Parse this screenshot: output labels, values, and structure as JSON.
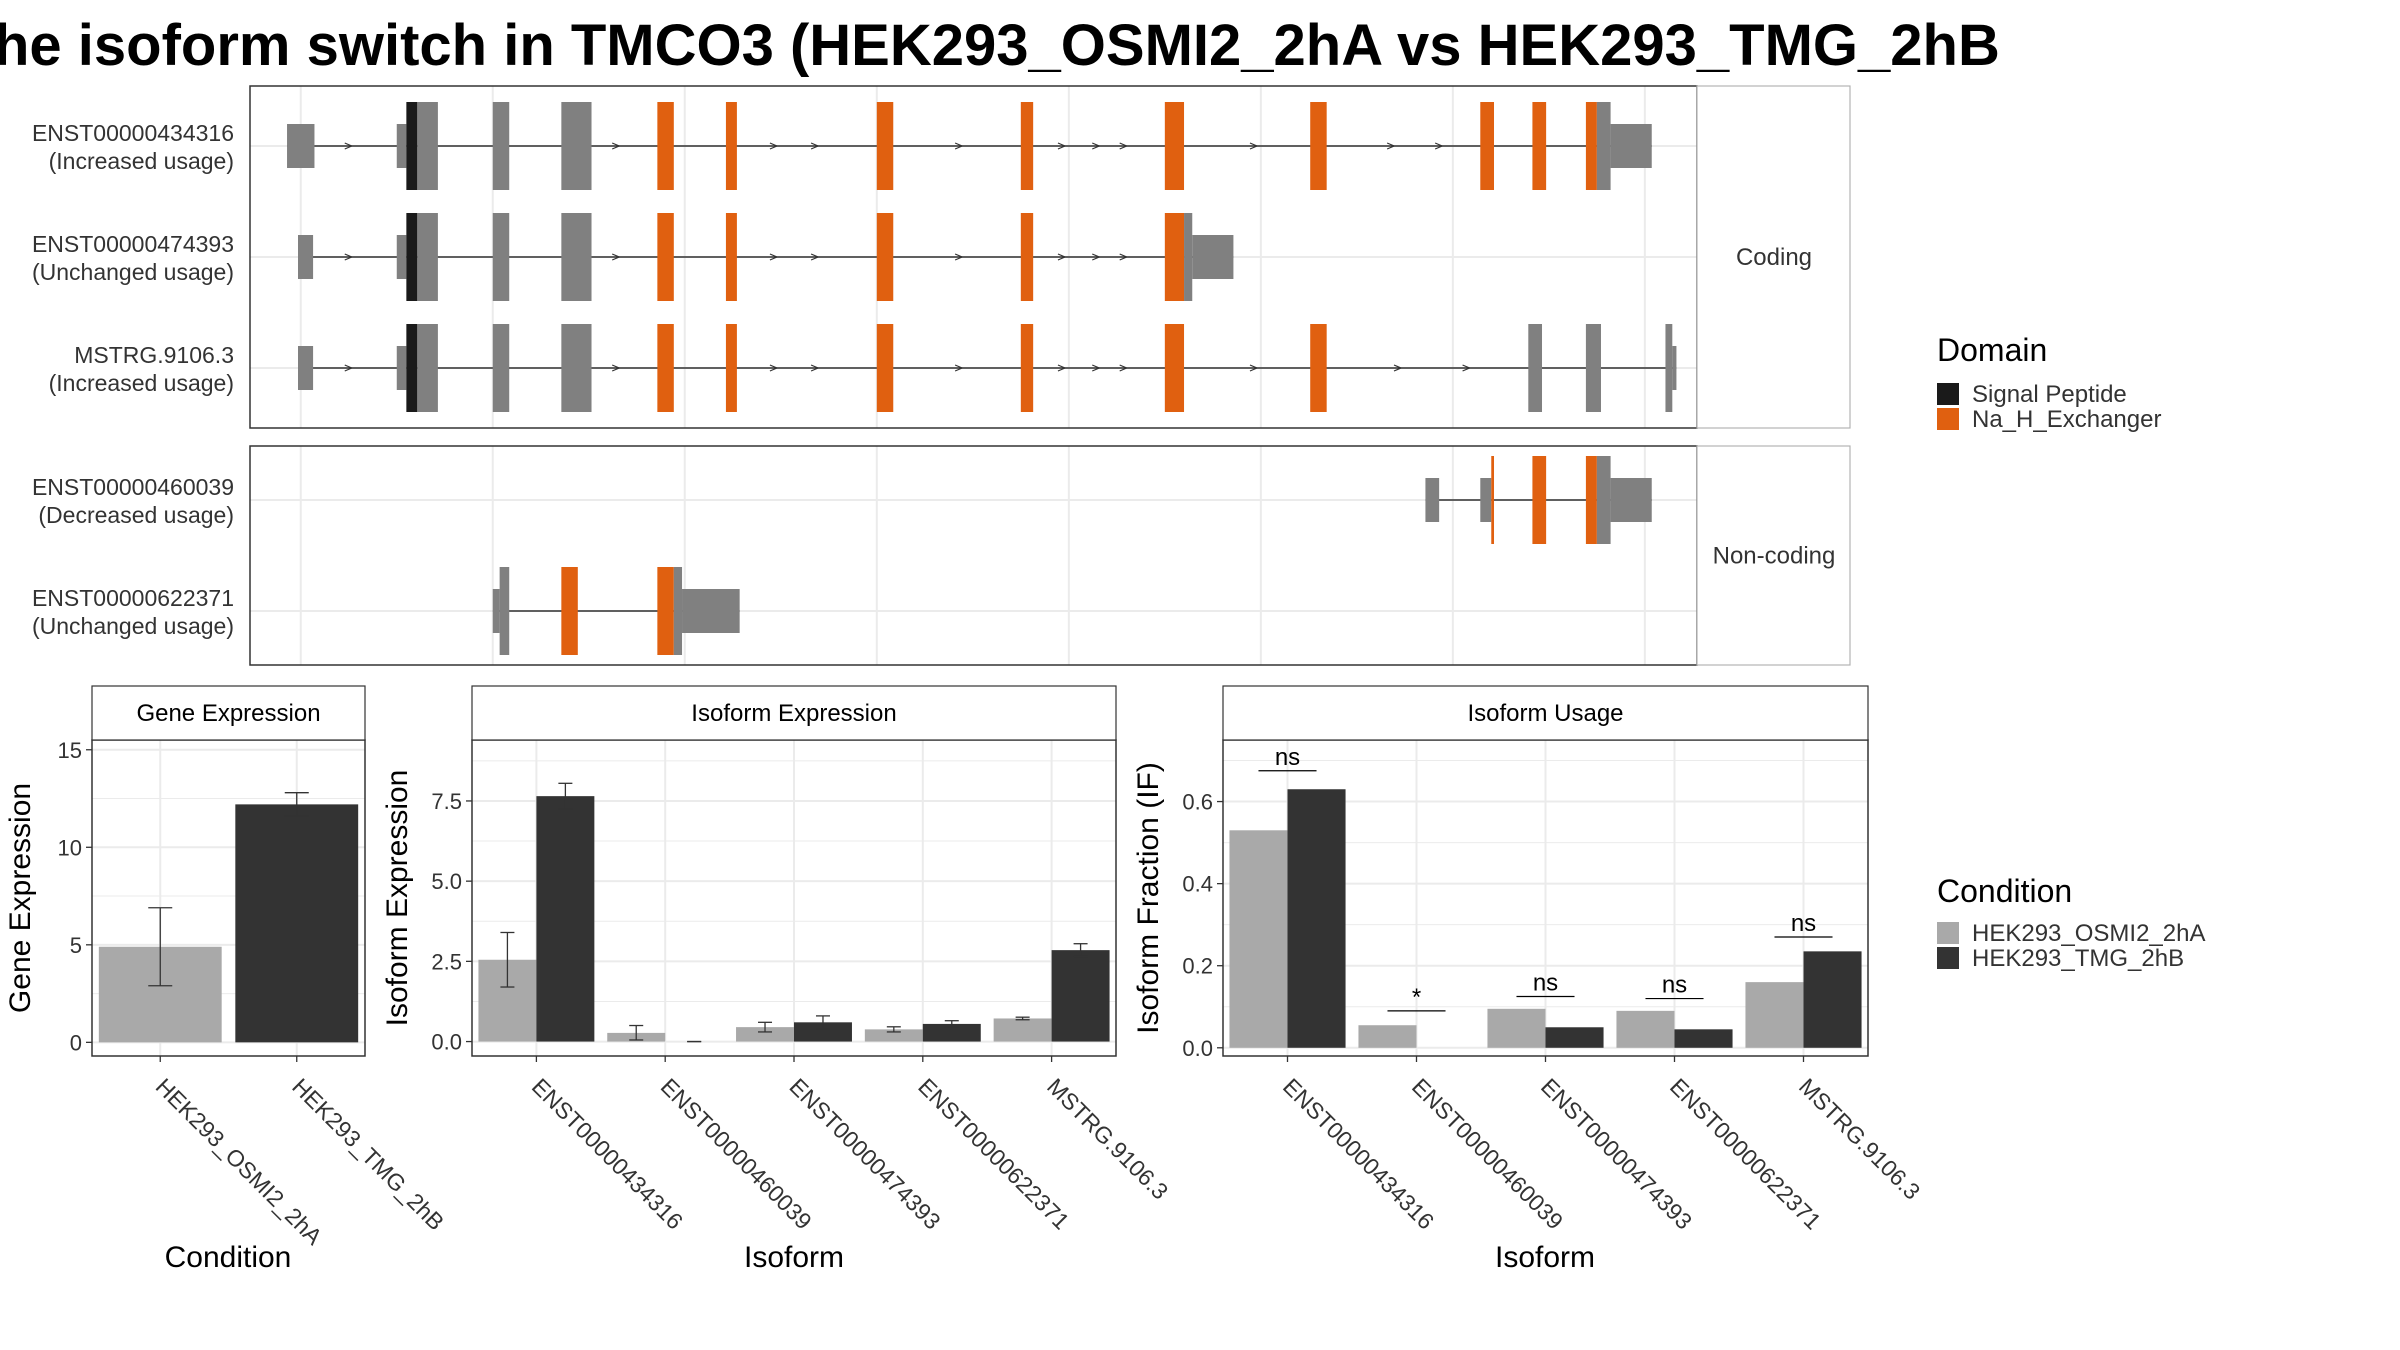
{
  "title": "he isoform switch in TMCO3 (HEK293_OSMI2_2hA vs HEK293_TMG_2hB",
  "colors": {
    "signal_peptide": "#1a1a1a",
    "na_h_exchanger": "#E06010",
    "exon": "#808080",
    "cond_a": "#A9A9A9",
    "cond_b": "#333333",
    "grid": "#EBEBEB",
    "frame": "#333333",
    "strip_border": "#B3B3B3"
  },
  "structure": {
    "facets": [
      {
        "label": "Coding",
        "isoforms": [
          {
            "id": "ENST00000434316",
            "usage": "(Increased usage)",
            "exons": [
              [
                0.05,
                0.07,
                "s"
              ],
              [
                0.13,
                0.137,
                "s"
              ],
              [
                0.137,
                0.145,
                "sp"
              ],
              [
                0.145,
                0.16,
                "t"
              ],
              [
                0.2,
                0.212,
                "t"
              ],
              [
                0.25,
                0.272,
                "t"
              ],
              [
                0.32,
                0.332,
                "d"
              ],
              [
                0.37,
                0.378,
                "d"
              ],
              [
                0.48,
                0.492,
                "d"
              ],
              [
                0.585,
                0.594,
                "d"
              ],
              [
                0.69,
                0.704,
                "d"
              ],
              [
                0.796,
                0.808,
                "d"
              ],
              [
                0.92,
                0.93,
                "d"
              ],
              [
                0.958,
                0.968,
                "d"
              ],
              [
                0.997,
                1.005,
                "d"
              ],
              [
                1.005,
                1.015,
                "t"
              ],
              [
                1.015,
                1.045,
                "s"
              ]
            ],
            "arrows": [
              0.095,
              0.21,
              0.29,
              0.405,
              0.435,
              0.54,
              0.615,
              0.64,
              0.66,
              0.755,
              0.855,
              0.89
            ]
          },
          {
            "id": "ENST00000474393",
            "usage": "(Unchanged usage)",
            "exons": [
              [
                0.058,
                0.069,
                "s"
              ],
              [
                0.13,
                0.137,
                "s"
              ],
              [
                0.137,
                0.145,
                "sp"
              ],
              [
                0.145,
                0.16,
                "t"
              ],
              [
                0.2,
                0.212,
                "t"
              ],
              [
                0.25,
                0.272,
                "t"
              ],
              [
                0.32,
                0.332,
                "d"
              ],
              [
                0.37,
                0.378,
                "d"
              ],
              [
                0.48,
                0.492,
                "d"
              ],
              [
                0.585,
                0.594,
                "d"
              ],
              [
                0.69,
                0.704,
                "d"
              ],
              [
                0.704,
                0.71,
                "t"
              ],
              [
                0.71,
                0.74,
                "s"
              ]
            ],
            "arrows": [
              0.095,
              0.205,
              0.29,
              0.405,
              0.435,
              0.54,
              0.615,
              0.64,
              0.66
            ]
          },
          {
            "id": "MSTRG.9106.3",
            "usage": "(Increased usage)",
            "exons": [
              [
                0.058,
                0.069,
                "s"
              ],
              [
                0.13,
                0.137,
                "s"
              ],
              [
                0.137,
                0.145,
                "sp"
              ],
              [
                0.145,
                0.16,
                "t"
              ],
              [
                0.2,
                0.212,
                "t"
              ],
              [
                0.25,
                0.272,
                "t"
              ],
              [
                0.32,
                0.332,
                "d"
              ],
              [
                0.37,
                0.378,
                "d"
              ],
              [
                0.48,
                0.492,
                "d"
              ],
              [
                0.585,
                0.594,
                "d"
              ],
              [
                0.69,
                0.704,
                "d"
              ],
              [
                0.796,
                0.808,
                "d"
              ],
              [
                0.955,
                0.965,
                "t"
              ],
              [
                0.997,
                1.008,
                "t"
              ],
              [
                1.055,
                1.06,
                "t"
              ],
              [
                1.06,
                1.063,
                "s"
              ]
            ],
            "arrows": [
              0.095,
              0.21,
              0.29,
              0.405,
              0.435,
              0.54,
              0.615,
              0.64,
              0.66,
              0.755,
              0.86,
              0.91
            ]
          }
        ]
      },
      {
        "label": "Non-coding",
        "isoforms": [
          {
            "id": "ENST00000460039",
            "usage": "(Decreased usage)",
            "exons": [
              [
                0.88,
                0.89,
                "s"
              ],
              [
                0.92,
                0.928,
                "s"
              ],
              [
                0.928,
                0.93,
                "d"
              ],
              [
                0.958,
                0.968,
                "d"
              ],
              [
                0.997,
                1.005,
                "d"
              ],
              [
                1.005,
                1.015,
                "t"
              ],
              [
                1.015,
                1.045,
                "s"
              ]
            ],
            "arrows": []
          },
          {
            "id": "ENST00000622371",
            "usage": "(Unchanged usage)",
            "exons": [
              [
                0.2,
                0.205,
                "s"
              ],
              [
                0.205,
                0.212,
                "t"
              ],
              [
                0.25,
                0.262,
                "d"
              ],
              [
                0.32,
                0.332,
                "d"
              ],
              [
                0.332,
                0.338,
                "t"
              ],
              [
                0.338,
                0.38,
                "s"
              ]
            ],
            "arrows": []
          }
        ]
      }
    ],
    "legend": {
      "title": "Domain",
      "items": [
        "Signal Peptide",
        "Na_H_Exchanger"
      ]
    }
  },
  "chart_data": [
    {
      "type": "bar",
      "title": "Gene Expression",
      "xlabel": "Condition",
      "ylabel": "Gene Expression",
      "categories": [
        "HEK293_OSMI2_2hA",
        "HEK293_TMG_2hB"
      ],
      "values": [
        4.9,
        12.2
      ],
      "errors": [
        [
          2.9,
          6.9
        ],
        [
          11.6,
          12.8
        ]
      ],
      "ylim": [
        -0.7,
        15.5
      ],
      "yticks": [
        0,
        5,
        10,
        15
      ],
      "grid": true
    },
    {
      "type": "bar",
      "title": "Isoform Expression",
      "xlabel": "Isoform",
      "ylabel": "Isoform Expression",
      "categories": [
        "ENST00000434316",
        "ENST00000460039",
        "ENST00000474393",
        "ENST00000622371",
        "MSTRG.9106.3"
      ],
      "series": [
        {
          "name": "HEK293_OSMI2_2hA",
          "values": [
            2.55,
            0.27,
            0.45,
            0.38,
            0.72
          ],
          "errors": [
            [
              1.7,
              3.4
            ],
            [
              0.05,
              0.5
            ],
            [
              0.3,
              0.6
            ],
            [
              0.3,
              0.46
            ],
            [
              0.68,
              0.76
            ]
          ]
        },
        {
          "name": "HEK293_TMG_2hB",
          "values": [
            7.65,
            0.0,
            0.6,
            0.55,
            2.85
          ],
          "errors": [
            [
              7.25,
              8.05
            ],
            [
              0.0,
              0.0
            ],
            [
              0.4,
              0.8
            ],
            [
              0.45,
              0.65
            ],
            [
              2.65,
              3.05
            ]
          ]
        }
      ],
      "ylim": [
        -0.45,
        9.4
      ],
      "yticks": [
        0.0,
        2.5,
        5.0,
        7.5
      ],
      "ytick_labels": [
        "0.0",
        "2.5",
        "5.0",
        "7.5"
      ],
      "grid": true
    },
    {
      "type": "bar",
      "title": "Isoform Usage",
      "xlabel": "Isoform",
      "ylabel": "Isoform Fraction (IF)",
      "categories": [
        "ENST00000434316",
        "ENST00000460039",
        "ENST00000474393",
        "ENST00000622371",
        "MSTRG.9106.3"
      ],
      "series": [
        {
          "name": "HEK293_OSMI2_2hA",
          "values": [
            0.53,
            0.055,
            0.095,
            0.09,
            0.16
          ]
        },
        {
          "name": "HEK293_TMG_2hB",
          "values": [
            0.63,
            0.0,
            0.05,
            0.045,
            0.235
          ]
        }
      ],
      "significance": [
        {
          "label": "ns",
          "y": 0.675
        },
        {
          "label": "*",
          "y": 0.09
        },
        {
          "label": "ns",
          "y": 0.125
        },
        {
          "label": "ns",
          "y": 0.12
        },
        {
          "label": "ns",
          "y": 0.27
        }
      ],
      "ylim": [
        -0.02,
        0.75
      ],
      "yticks": [
        0.0,
        0.2,
        0.4,
        0.6
      ],
      "ytick_labels": [
        "0.0",
        "0.2",
        "0.4",
        "0.6"
      ],
      "grid": true
    }
  ],
  "condition_legend": {
    "title": "Condition",
    "items": [
      "HEK293_OSMI2_2hA",
      "HEK293_TMG_2hB"
    ]
  }
}
